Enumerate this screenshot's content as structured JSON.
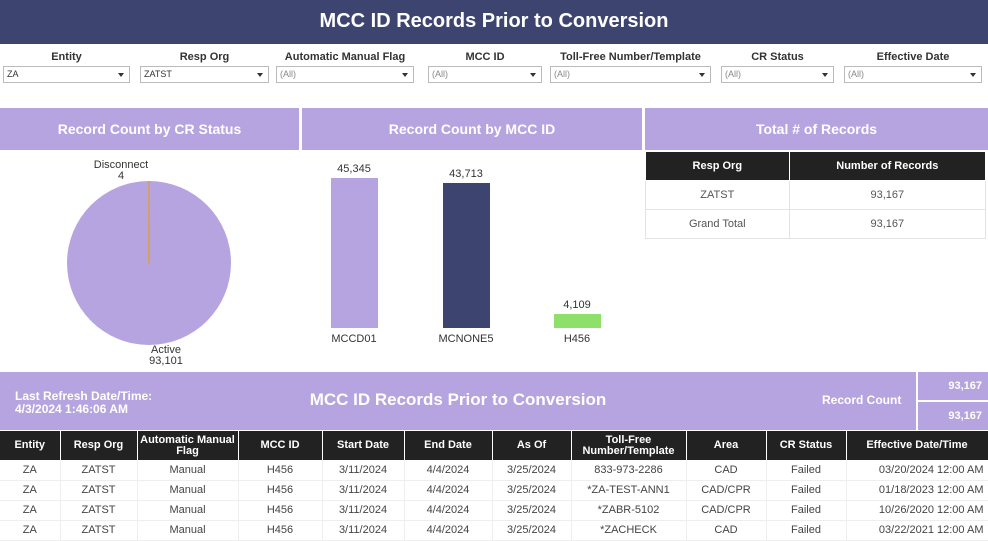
{
  "header": {
    "title": "MCC ID Records Prior to Conversion"
  },
  "filters": [
    {
      "label": "Entity",
      "value": "ZA",
      "muted": false
    },
    {
      "label": "Resp Org",
      "value": "ZATST",
      "muted": false
    },
    {
      "label": "Automatic Manual Flag",
      "value": "(All)",
      "muted": true
    },
    {
      "label": "MCC ID",
      "value": "(All)",
      "muted": true
    },
    {
      "label": "Toll-Free Number/Template",
      "value": "(All)",
      "muted": true
    },
    {
      "label": "CR Status",
      "value": "(All)",
      "muted": true
    },
    {
      "label": "Effective Date",
      "value": "(All)",
      "muted": true
    }
  ],
  "panels": {
    "cr_status": "Record Count by CR Status",
    "mcc_id": "Record Count by MCC ID",
    "total": "Total # of Records"
  },
  "colors": {
    "header": "#3e4470",
    "accent": "#b6a4e0",
    "bar_dark": "#3e4470",
    "bar_green": "#8ee06a",
    "slice_line": "#e0a030"
  },
  "chart_data": [
    {
      "type": "pie",
      "categories": [
        "Disconnect",
        "Active"
      ],
      "labels": [
        "4",
        "93,101"
      ],
      "values": [
        4,
        93101
      ]
    },
    {
      "type": "bar",
      "categories": [
        "MCCD01",
        "MCNONE5",
        "H456"
      ],
      "labels": [
        "45,345",
        "43,713",
        "4,109"
      ],
      "values": [
        45345,
        43713,
        4109
      ],
      "colors": [
        "#b6a4e0",
        "#3e4470",
        "#8ee06a"
      ]
    }
  ],
  "totals": {
    "headers": [
      "Resp Org",
      "Number of Records"
    ],
    "rows": [
      [
        "ZATST",
        "93,167"
      ],
      [
        "Grand Total",
        "93,167"
      ]
    ]
  },
  "band": {
    "refresh_label": "Last Refresh Date/Time:",
    "refresh_value": "4/3/2024 1:46:06 AM",
    "title": "MCC ID Records Prior to Conversion",
    "record_count_label": "Record Count",
    "record_count_values": [
      "93,167",
      "93,167"
    ]
  },
  "records": {
    "headers": [
      "Entity",
      "Resp Org",
      "Automatic Manual Flag",
      "MCC ID",
      "Start Date",
      "End Date",
      "As Of",
      "Toll-Free Number/Template",
      "Area",
      "CR Status",
      "Effective Date/Time"
    ],
    "rows": [
      [
        "ZA",
        "ZATST",
        "Manual",
        "H456",
        "3/11/2024",
        "4/4/2024",
        "3/25/2024",
        "833-973-2286",
        "CAD",
        "Failed",
        "03/20/2024 12:00 AM"
      ],
      [
        "ZA",
        "ZATST",
        "Manual",
        "H456",
        "3/11/2024",
        "4/4/2024",
        "3/25/2024",
        "*ZA-TEST-ANN1",
        "CAD/CPR",
        "Failed",
        "01/18/2023 12:00 AM"
      ],
      [
        "ZA",
        "ZATST",
        "Manual",
        "H456",
        "3/11/2024",
        "4/4/2024",
        "3/25/2024",
        "*ZABR-5102",
        "CAD/CPR",
        "Failed",
        "10/26/2020 12:00 AM"
      ],
      [
        "ZA",
        "ZATST",
        "Manual",
        "H456",
        "3/11/2024",
        "4/4/2024",
        "3/25/2024",
        "*ZACHECK",
        "CAD",
        "Failed",
        "03/22/2021 12:00 AM"
      ]
    ]
  }
}
